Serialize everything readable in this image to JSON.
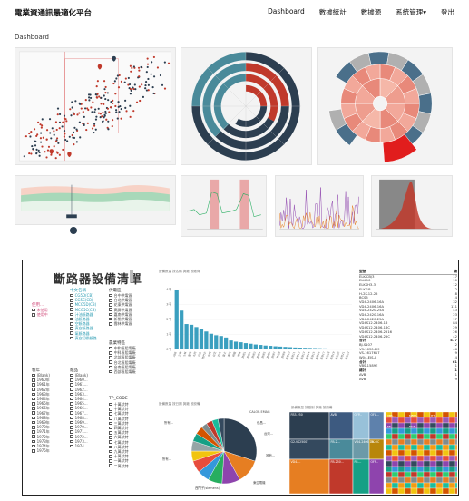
{
  "app": {
    "title": "電業資通訊最適化平台",
    "breadcrumb": "Dashboard"
  },
  "nav": {
    "dashboard": "Dashboard",
    "stats": "數據統計",
    "source": "數據源",
    "admin": "系統管理▾",
    "logout": "登出"
  },
  "colors": {
    "red": "#c0392b",
    "navy": "#2c3e50",
    "teal": "#4a8a9a",
    "salmon": "#f2a89a",
    "report_bar": "#3a9fbf"
  },
  "report": {
    "title": "斷路器設備清單",
    "slicer1_title": "中文名稱",
    "slicer1_items": [
      "CG5D(CB)",
      "CG5C(CB)",
      "MCG5D(CB)",
      "MCG5C(CB)",
      "汁油斷路器",
      "油斷路器",
      "空斷路器",
      "真空斷路器",
      "氣斷路器",
      "真空切換斷路"
    ],
    "slicer2_title": "供電區",
    "slicer2_items": [
      "台中供電區",
      "台北供電區",
      "花東供電區",
      "高屏供電區",
      "嘉南供電區",
      "新桃供電區",
      "雲林供電區"
    ],
    "slicer3_title": "農業特區",
    "slicer3_items": [
      "中和區阻電廠",
      "中科區阻電廠",
      "北部區阻電廠",
      "台北區阻電廠",
      "台南區阻電廠",
      "西部區阻電廠"
    ],
    "legend_a_title": "使用...",
    "legend_a_items": [
      "未使用",
      "使用中"
    ],
    "year_title": "製年",
    "year_items": [
      "(Blank)",
      "1960年",
      "1961年",
      "1962年",
      "1963年",
      "1964年",
      "1965年",
      "1966年",
      "1967年",
      "1968年",
      "1969年",
      "1970年",
      "1971年",
      "1972年",
      "1973年",
      "1974年",
      "1975年"
    ],
    "model_title": "廠品",
    "model_items": [
      "(Blank)",
      "1960...",
      "1961...",
      "1962...",
      "1963...",
      "1964...",
      "1965...",
      "1966...",
      "1967...",
      "1968...",
      "1969...",
      "1970...",
      "1971...",
      "1972...",
      "1973...",
      "1974..."
    ],
    "tpcode_title": "TP_CODE",
    "tpcode_items": [
      "十萬伏特",
      "十萬伏特",
      "七萬伏特",
      "八萬伏特",
      "三萬伏特",
      "四萬伏特",
      "五萬伏特",
      "六萬伏特",
      "七萬伏特",
      "八萬伏特",
      "九萬伏特",
      "十萬伏特",
      "一萬伏特",
      "二萬伏特"
    ],
    "bar_caption": "設備數量 按名稱 與廠 按廠商",
    "pie_caption": "設備數量 按日期 與廠 按設備",
    "tree_caption": "設備數量 按型別 與廠 按設備",
    "pie_labels": [
      "CALOR EMAG",
      "伯昌...",
      "台灣...",
      "所有...",
      "所有...",
      "東亞電機",
      "西門子(siemens)",
      "其他..."
    ],
    "treemap_labels": [
      "FB3-250",
      "AVB",
      "OFP...",
      "OFL...",
      "G2-VS25007",
      "FB-2...",
      "VD4-2406-16",
      "TK-OC",
      "VD4-...",
      "FB-250...",
      "FP-...",
      "OFP...",
      "VBS-...",
      "MFPT...",
      "HT...",
      "FB...",
      "FP-E..."
    ],
    "table_header": [
      "型號",
      "總"
    ],
    "table_rows": [
      [
        "ELK-CB/3",
        "17"
      ],
      [
        "ELK-10",
        "10"
      ],
      [
        "ELKSH3-3",
        "12"
      ],
      [
        "ELK-1P",
        "2"
      ],
      [
        "H-2K-12-25",
        "8"
      ],
      [
        "BCS5",
        "4"
      ],
      [
        "VD4-2406-16A",
        "32"
      ],
      [
        "VD4-2406-16A",
        "111"
      ],
      [
        "VD4-2420-25A",
        "43"
      ],
      [
        "VD4-2420-16A",
        "23"
      ],
      [
        "VD4-2420-25A",
        "17"
      ],
      [
        "VD4S12.2406-16",
        "84"
      ],
      [
        "VD4S12.2406-16C",
        "29"
      ],
      [
        "VD4S12.2406-2516",
        "26"
      ],
      [
        "VD4S12.2406-25C",
        "42"
      ],
      [
        "合計",
        "477"
      ],
      [
        "BJ-S107",
        "2"
      ],
      [
        "VS-1630-2M",
        "46"
      ],
      [
        "VS-1617617",
        "9"
      ],
      [
        "W04-EJS-A",
        "4"
      ],
      [
        "合計",
        "61"
      ],
      [
        "VBS-1589E",
        "1"
      ],
      [
        "總計",
        "1"
      ],
      [
        "AVB",
        "1"
      ],
      [
        "AVB",
        "79"
      ]
    ],
    "table_groups": [
      "ABB",
      "AEG",
      "AIA",
      "AEUL..."
    ]
  },
  "chart_data": [
    {
      "type": "bar",
      "title": "設備數量 按名稱 與廠 按廠商",
      "categories": [
        "ABB",
        "三菱",
        "士林",
        "東芝",
        "大同",
        "日立",
        "西門子",
        "中興",
        "台芝",
        "亞力",
        "富士",
        "東元",
        "明電",
        "華城",
        "其他1",
        "其他2",
        "其他3",
        "其他4",
        "其他5",
        "其他6",
        "其他7",
        "其他8",
        "其他9",
        "其他10",
        "其他11",
        "其他12",
        "其他13",
        "其他14",
        "其他15",
        "其他16",
        "其他17",
        "其他18",
        "其他19",
        "其他20",
        "其他21",
        "其他22"
      ],
      "values": [
        4000,
        2600,
        1700,
        1650,
        1500,
        1350,
        1200,
        1050,
        950,
        900,
        800,
        600,
        520,
        480,
        420,
        380,
        330,
        300,
        260,
        240,
        210,
        190,
        170,
        150,
        130,
        120,
        110,
        100,
        90,
        80,
        70,
        60,
        55,
        50,
        45,
        40
      ],
      "ylim": [
        0,
        4500
      ],
      "ytick_labels": [
        "0千",
        "1千",
        "2千",
        "3千",
        "4千"
      ]
    },
    {
      "type": "pie",
      "title": "設備數量 按日期 與廠 按設備",
      "values": [
        30,
        12,
        9,
        7,
        6,
        6,
        5,
        5,
        4,
        4,
        3,
        3,
        3,
        3
      ]
    }
  ]
}
